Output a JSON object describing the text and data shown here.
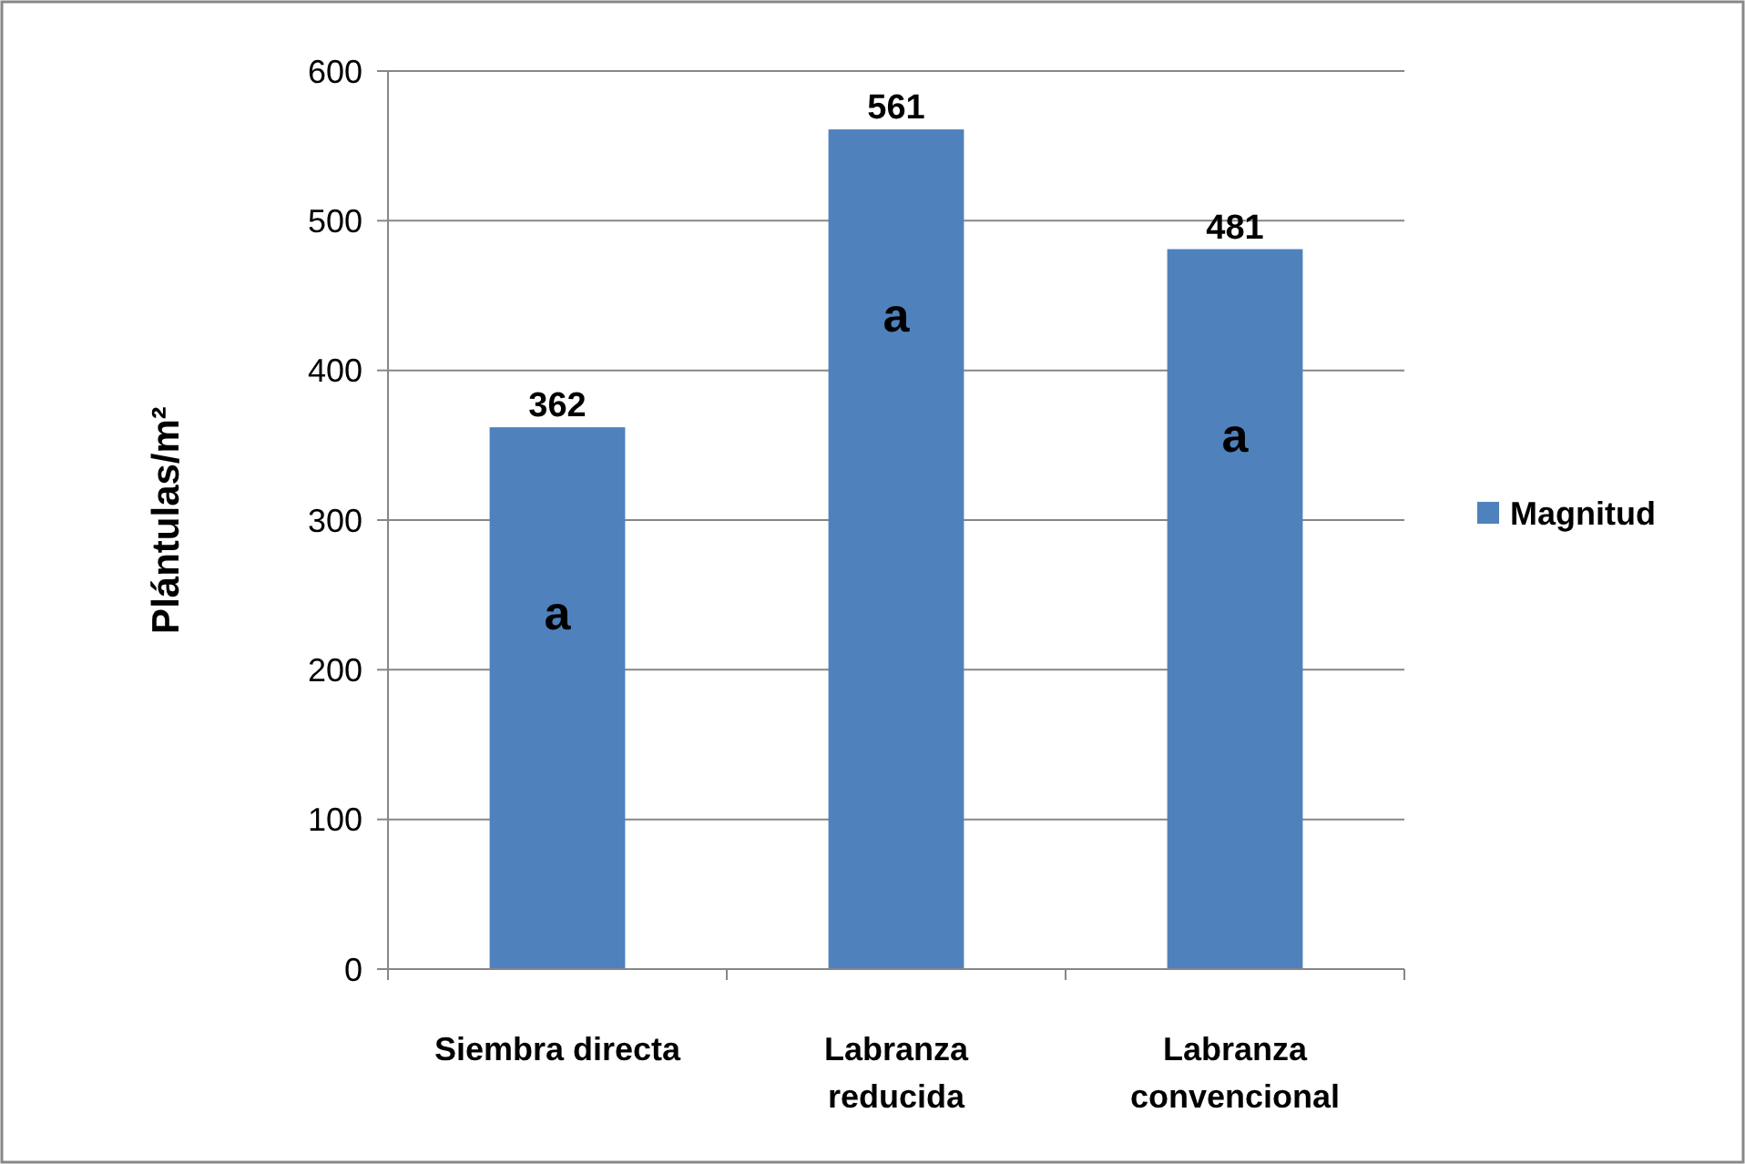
{
  "chart_data": {
    "type": "bar",
    "ylabel": "Plántulas/m²",
    "categories": [
      "Siembra directa",
      "Labranza reducida",
      "Labranza convencional"
    ],
    "series": [
      {
        "name": "Magnitud",
        "color": "#4f81bd",
        "values": [
          362,
          561,
          481
        ]
      }
    ],
    "ylim": [
      0,
      600
    ],
    "yticks": [
      0,
      100,
      200,
      300,
      400,
      500,
      600
    ],
    "grid": "y",
    "legend": "right",
    "data_labels": true,
    "annotations": [
      "a",
      "a",
      "a"
    ]
  }
}
